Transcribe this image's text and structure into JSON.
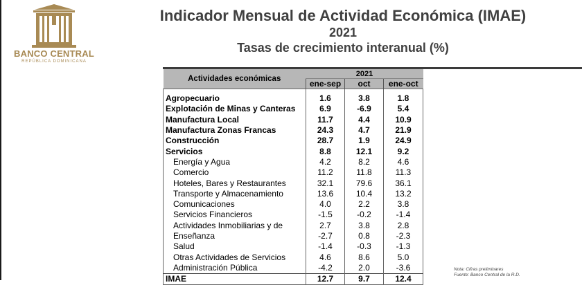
{
  "logo": {
    "main": "BANCO CENTRAL",
    "sub": "REPÚBLICA DOMINICANA"
  },
  "header": {
    "title": "Indicador Mensual de Actividad Económica (IMAE)",
    "year": "2021",
    "subtitle": "Tasas de crecimiento interanual (%)"
  },
  "table": {
    "col_header": "Actividades económicas",
    "year_header": "2021",
    "periods": [
      "ene-sep",
      "oct",
      "ene-oct"
    ],
    "rows": [
      {
        "label": "Agropecuario",
        "values": [
          "1.6",
          "3.8",
          "1.8"
        ]
      },
      {
        "label": "Explotación de Minas y Canteras",
        "values": [
          "6.9",
          "-6.9",
          "5.4"
        ]
      },
      {
        "label": "Manufactura Local",
        "values": [
          "11.7",
          "4.4",
          "10.9"
        ]
      },
      {
        "label": "Manufactura Zonas Francas",
        "values": [
          "24.3",
          "4.7",
          "21.9"
        ]
      },
      {
        "label": "Construcción",
        "values": [
          "28.7",
          "1.9",
          "24.9"
        ]
      },
      {
        "label": "Servicios",
        "values": [
          "8.8",
          "12.1",
          "9.2"
        ]
      },
      {
        "label": "Energía y Agua",
        "values": [
          "4.2",
          "8.2",
          "4.6"
        ]
      },
      {
        "label": "Comercio",
        "values": [
          "11.2",
          "11.8",
          "11.3"
        ]
      },
      {
        "label": "Hoteles, Bares y Restaurantes",
        "values": [
          "32.1",
          "79.6",
          "36.1"
        ]
      },
      {
        "label": "Transporte y Almacenamiento",
        "values": [
          "13.6",
          "10.4",
          "13.2"
        ]
      },
      {
        "label": "Comunicaciones",
        "values": [
          "4.0",
          "2.2",
          "3.8"
        ]
      },
      {
        "label": "Servicios Financieros",
        "values": [
          "-1.5",
          "-0.2",
          "-1.4"
        ]
      },
      {
        "label": "Actividades Inmobiliarias y de",
        "values": [
          "2.7",
          "3.8",
          "2.8"
        ]
      },
      {
        "label": "Enseñanza",
        "values": [
          "-2.7",
          "0.8",
          "-2.3"
        ]
      },
      {
        "label": "Salud",
        "values": [
          "-1.4",
          "-0.3",
          "-1.3"
        ]
      },
      {
        "label": "Otras Actividades de Servicios",
        "values": [
          "4.6",
          "8.6",
          "5.0"
        ]
      },
      {
        "label": "Administración Pública",
        "values": [
          "-4.2",
          "2.0",
          "-3.6"
        ]
      },
      {
        "label": "IMAE",
        "values": [
          "12.7",
          "9.7",
          "12.4"
        ]
      }
    ]
  },
  "notes": {
    "line1": "Nota: Cifras preliminares",
    "line2": "Fuente: Banco Central de la R.D."
  }
}
